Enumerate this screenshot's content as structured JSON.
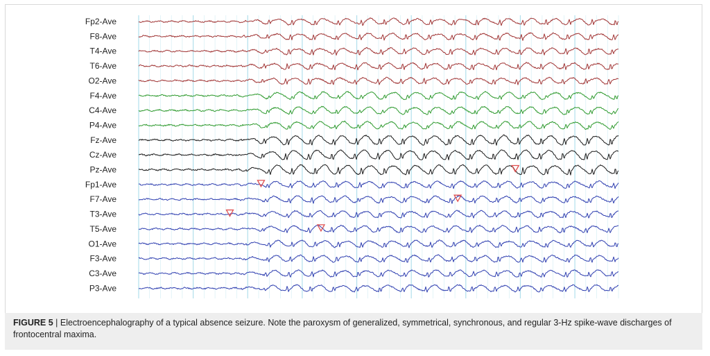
{
  "figure": {
    "label": "FIGURE 5",
    "separator": " | ",
    "caption": "Electroencephalography of a typical absence seizure. Note the paroxysm of generalized, symmetrical, synchronous, and regular 3-Hz spike-wave discharges of frontocentral maxima."
  },
  "chart_data": {
    "type": "line",
    "description_type": "eeg-traces",
    "channels": [
      {
        "name": "Fp2-Ave",
        "color": "#a03434",
        "group": "right-temporal"
      },
      {
        "name": "F8-Ave",
        "color": "#a03434",
        "group": "right-temporal"
      },
      {
        "name": "T4-Ave",
        "color": "#a03434",
        "group": "right-temporal"
      },
      {
        "name": "T6-Ave",
        "color": "#a03434",
        "group": "right-temporal"
      },
      {
        "name": "O2-Ave",
        "color": "#a03434",
        "group": "right-temporal"
      },
      {
        "name": "F4-Ave",
        "color": "#2e9a2e",
        "group": "right-parasagittal"
      },
      {
        "name": "C4-Ave",
        "color": "#2e9a2e",
        "group": "right-parasagittal"
      },
      {
        "name": "P4-Ave",
        "color": "#2e9a2e",
        "group": "right-parasagittal"
      },
      {
        "name": "Fz-Ave",
        "color": "#1a1a1a",
        "group": "midline"
      },
      {
        "name": "Cz-Ave",
        "color": "#1a1a1a",
        "group": "midline"
      },
      {
        "name": "Pz-Ave",
        "color": "#1a1a1a",
        "group": "midline"
      },
      {
        "name": "Fp1-Ave",
        "color": "#2f3fb0",
        "group": "left"
      },
      {
        "name": "F7-Ave",
        "color": "#2f3fb0",
        "group": "left"
      },
      {
        "name": "T3-Ave",
        "color": "#2f3fb0",
        "group": "left"
      },
      {
        "name": "T5-Ave",
        "color": "#2f3fb0",
        "group": "left"
      },
      {
        "name": "O1-Ave",
        "color": "#2f3fb0",
        "group": "left"
      },
      {
        "name": "F3-Ave",
        "color": "#2f3fb0",
        "group": "left"
      },
      {
        "name": "C3-Ave",
        "color": "#2f3fb0",
        "group": "left"
      },
      {
        "name": "P3-Ave",
        "color": "#2f3fb0",
        "group": "left"
      }
    ],
    "onset_fraction": 0.23,
    "discharge_frequency_hz": 3,
    "discharge_cycles_visible": 16,
    "grid": true,
    "grid_color": "#a9dcea",
    "markers": [
      {
        "channel": "Pz-Ave",
        "time_fraction": 0.785,
        "shape": "triangle-down",
        "color": "#e05050"
      },
      {
        "channel": "Fp1-Ave",
        "time_fraction": 0.255,
        "shape": "triangle-down",
        "color": "#e05050"
      },
      {
        "channel": "F7-Ave",
        "time_fraction": 0.665,
        "shape": "triangle-down",
        "color": "#e05050"
      },
      {
        "channel": "T3-Ave",
        "time_fraction": 0.19,
        "shape": "triangle-down",
        "color": "#e05050"
      },
      {
        "channel": "T5-Ave",
        "time_fraction": 0.38,
        "shape": "triangle-down",
        "color": "#e05050"
      }
    ]
  }
}
